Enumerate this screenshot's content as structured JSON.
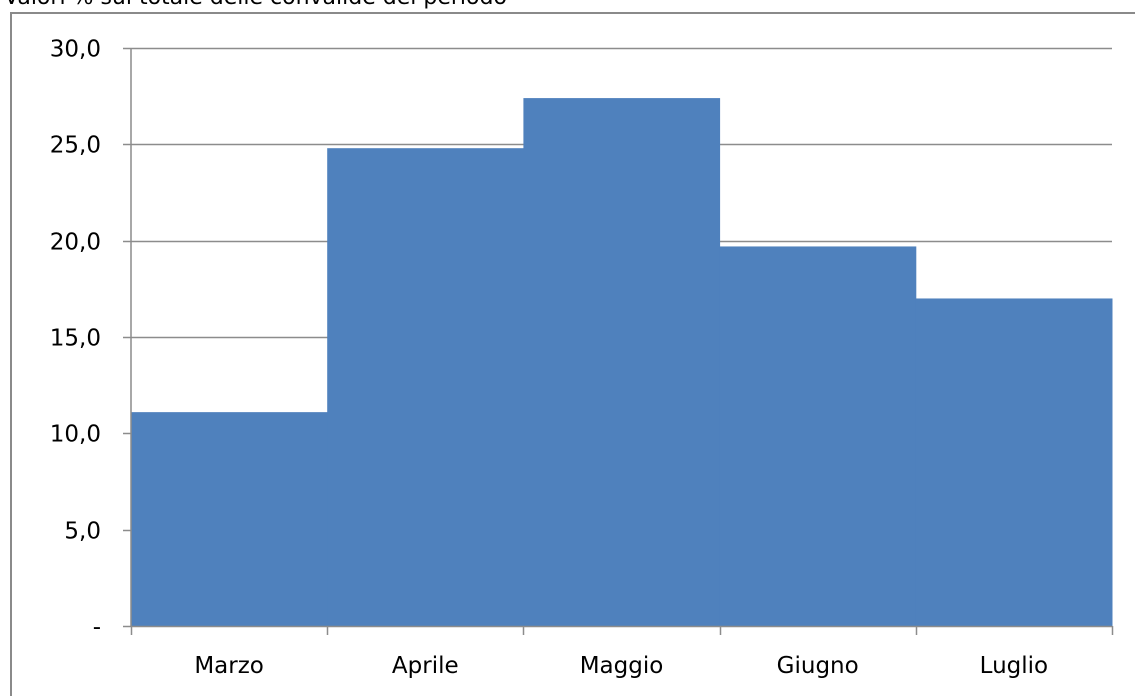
{
  "caption": "Valori % sul totale delle convalide del periodo",
  "chart_data": {
    "type": "bar",
    "categories": [
      "Marzo",
      "Aprile",
      "Maggio",
      "Giugno",
      "Luglio"
    ],
    "values": [
      11.1,
      24.8,
      27.4,
      19.7,
      17.0
    ],
    "ylim": [
      0,
      30
    ],
    "yticks": [
      0,
      5,
      10,
      15,
      20,
      25,
      30
    ],
    "ytick_labels": [
      "-",
      "5,0",
      "10,0",
      "15,0",
      "20,0",
      "25,0",
      "30,0"
    ],
    "bar_color": "#4F81BD",
    "grid": true,
    "legend": "none"
  }
}
